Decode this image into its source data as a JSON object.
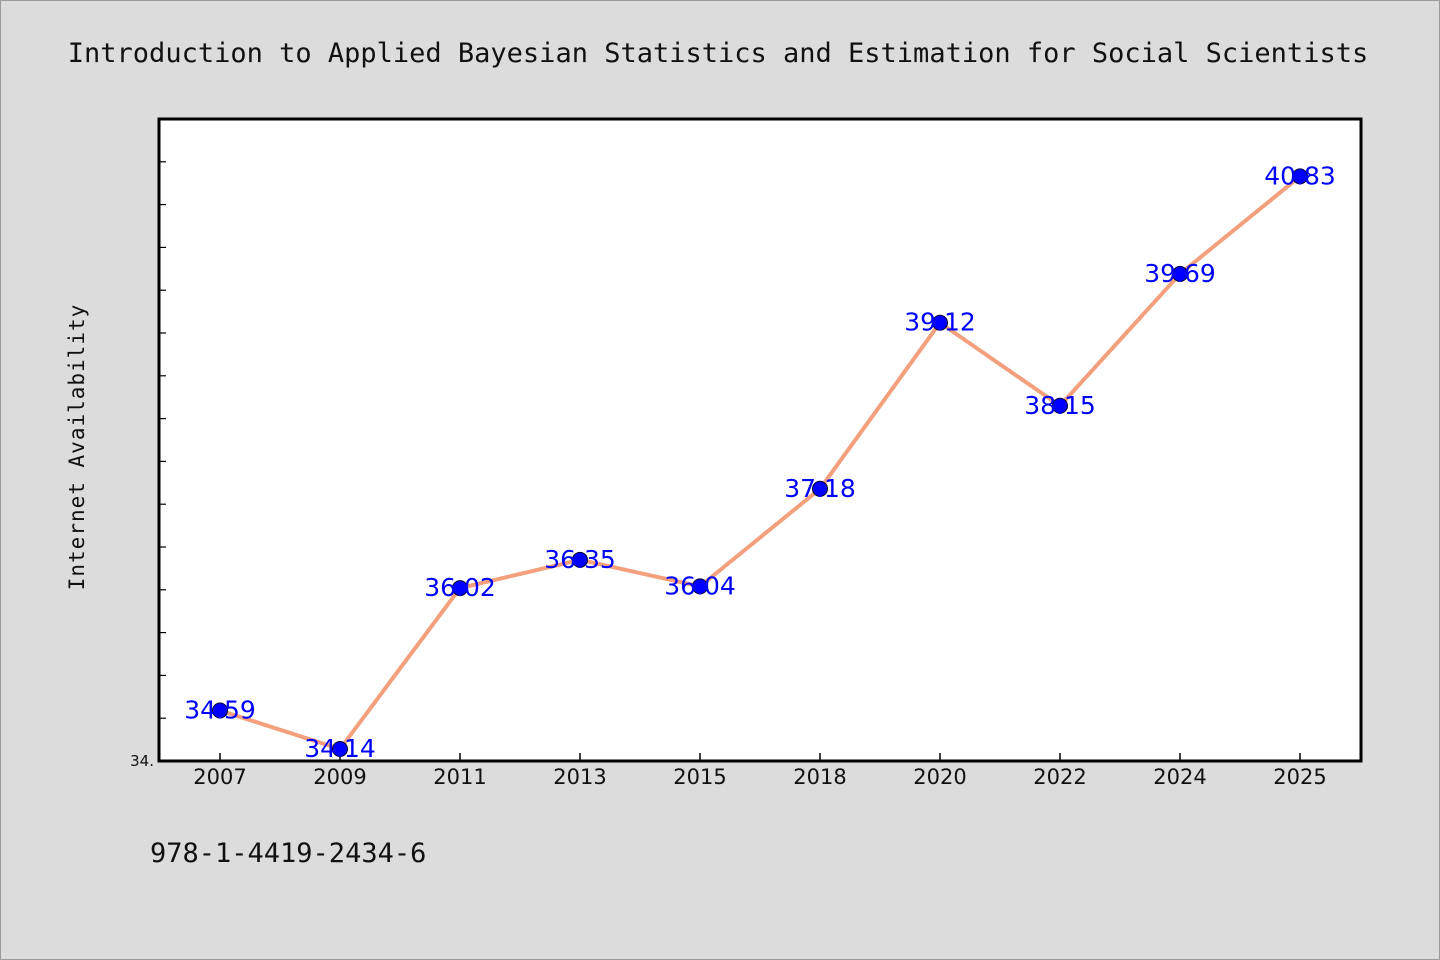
{
  "chart_data": {
    "type": "line",
    "title": "Introduction to Applied Bayesian Statistics and Estimation for Social Scientists",
    "xlabel": "",
    "ylabel": "Internet Availability",
    "categories": [
      "2007",
      "2009",
      "2011",
      "2013",
      "2015",
      "2018",
      "2020",
      "2022",
      "2024",
      "2025"
    ],
    "series": [
      {
        "values": [
          34.59,
          34.14,
          36.02,
          36.35,
          36.04,
          37.18,
          39.12,
          38.15,
          39.69,
          40.83
        ]
      }
    ],
    "data_labels": [
      "34.59",
      "34.14",
      "36.02",
      "36.35",
      "36.04",
      "37.18",
      "39.12",
      "38.15",
      "39.69",
      "40.83"
    ],
    "ytick_labels": [
      "34."
    ],
    "ylim": [
      34.0,
      41.5
    ],
    "grid": false,
    "line_color": "#f4a07c",
    "marker_color": "#0000ff",
    "label_color": "#0000ff",
    "plot_background": "#ffffff",
    "page_background": "#dcdcdc"
  },
  "footer": {
    "isbn": "978-1-4419-2434-6"
  }
}
